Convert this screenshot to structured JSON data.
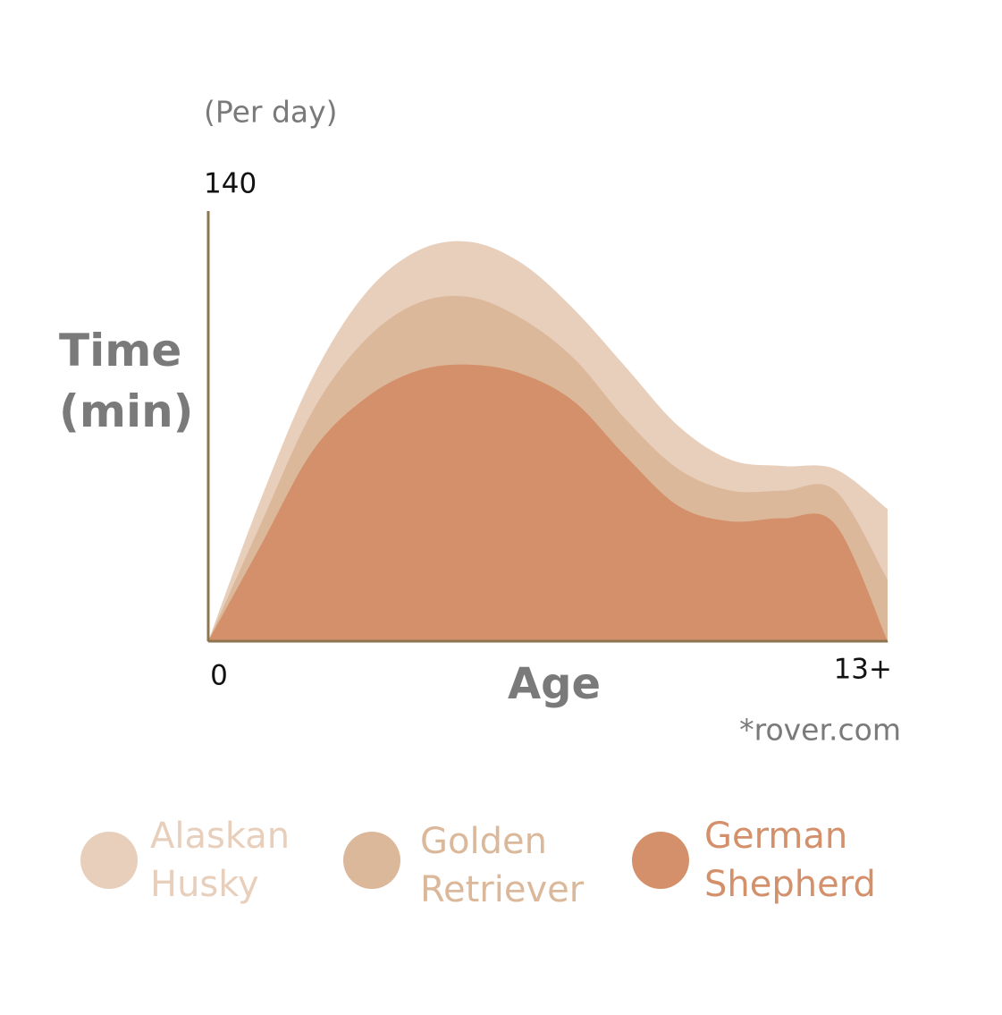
{
  "chart_data": {
    "type": "area",
    "subtitle": "(Per day)",
    "y_label": "Time (min)",
    "x_label": "Age",
    "annotation": "*rover.com",
    "x": [
      0,
      1,
      2,
      3,
      4,
      5,
      6,
      7,
      8,
      9,
      10,
      11,
      12,
      13
    ],
    "xlim": [
      0,
      13
    ],
    "xticks": [
      0,
      {
        "value": 13,
        "label": "13+"
      }
    ],
    "ylim": [
      0,
      140
    ],
    "yticks": [
      140
    ],
    "axis_color": "#8b7650",
    "series": [
      {
        "name": "Alaskan Husky",
        "color": "#e8cfbc",
        "values": [
          0,
          46,
          86,
          113,
          127,
          130,
          123,
          108,
          89,
          70,
          59,
          57,
          56,
          43
        ]
      },
      {
        "name": "Golden Retriever",
        "color": "#dcb89b",
        "values": [
          0,
          38,
          75,
          98,
          110,
          112,
          105,
          92,
          72,
          56,
          49,
          49,
          49,
          20
        ]
      },
      {
        "name": "German Shepherd",
        "color": "#d4906a",
        "values": [
          0,
          31,
          62,
          79,
          88,
          90,
          87,
          78,
          60,
          44,
          39,
          40,
          38,
          0
        ]
      }
    ]
  }
}
